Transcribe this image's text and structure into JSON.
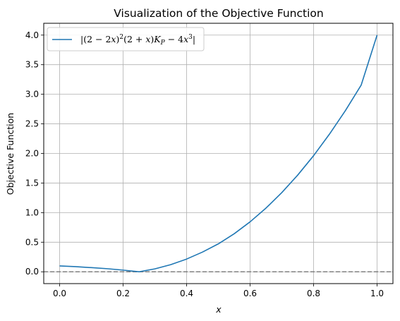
{
  "chart_data": {
    "type": "line",
    "title": "Visualization of the Objective Function",
    "xlabel": "x",
    "ylabel": "Objective Function",
    "xlim": [
      -0.05,
      1.05
    ],
    "ylim": [
      -0.2,
      4.2
    ],
    "xticks": [
      0.0,
      0.2,
      0.4,
      0.6,
      0.8,
      1.0
    ],
    "yticks": [
      0.0,
      0.5,
      1.0,
      1.5,
      2.0,
      2.5,
      3.0,
      3.5,
      4.0
    ],
    "xtick_labels": [
      "0.0",
      "0.2",
      "0.4",
      "0.6",
      "0.8",
      "1.0"
    ],
    "ytick_labels": [
      "0.0",
      "0.5",
      "1.0",
      "1.5",
      "2.0",
      "2.5",
      "3.0",
      "3.5",
      "4.0"
    ],
    "grid": true,
    "legend_position": "top-left",
    "reference_line": {
      "y": 0,
      "style": "dashed",
      "color": "#808080"
    },
    "series": [
      {
        "name": "|(2 − 2x)²(2 + x)K_P − 4x³|",
        "color": "#1f77b4",
        "x": [
          0.0,
          0.05,
          0.1,
          0.15,
          0.2,
          0.25,
          0.3,
          0.35,
          0.4,
          0.45,
          0.5,
          0.55,
          0.6,
          0.65,
          0.7,
          0.75,
          0.8,
          0.85,
          0.9,
          0.95,
          1.0
        ],
        "y": [
          0.099,
          0.087,
          0.07,
          0.052,
          0.028,
          0.0,
          0.049,
          0.12,
          0.215,
          0.333,
          0.472,
          0.643,
          0.844,
          1.076,
          1.339,
          1.634,
          1.962,
          2.326,
          2.722,
          3.156,
          4.0
        ]
      }
    ]
  },
  "legend": {
    "pre": "|(2 − 2",
    "x1": "x",
    "mid1": ")",
    "sup": "2",
    "mid2": "(2 + ",
    "x2": "x",
    "mid3": ")",
    "k": "K",
    "ksub": "P",
    "mid4": " − 4",
    "x3": "x",
    "sup3": "3",
    "post": "|"
  },
  "colors": {
    "series": "#1f77b4",
    "grid": "#b0b0b0",
    "reference": "#808080",
    "axes": "#000000"
  }
}
